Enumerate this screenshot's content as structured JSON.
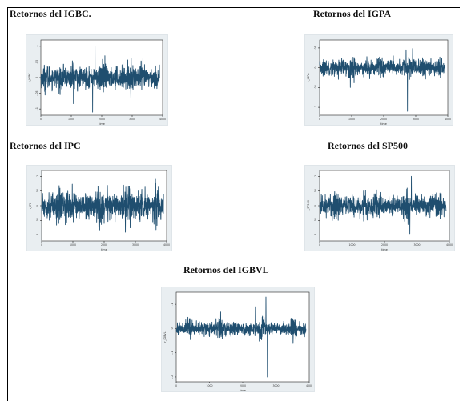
{
  "chart_data": [
    {
      "type": "line",
      "title": "Retornos del IGBC.",
      "ylabel": "r_IGBC",
      "xlabel": "time",
      "x_ticks": [
        "0",
        "1000",
        "2000",
        "3000",
        "4000"
      ],
      "y_ticks": [
        "-.1",
        "-.05",
        "0",
        ".05",
        ".1"
      ],
      "xlim": [
        0,
        4000
      ],
      "ylim": [
        -0.12,
        0.12
      ],
      "series_color": "#1f4e6f",
      "series": [
        {
          "x_range": [
            0,
            3900
          ],
          "base_amplitude": 0.015,
          "spikes": [
            {
              "x": 1700,
              "y": -0.11
            },
            {
              "x": 1780,
              "y": 0.1
            },
            {
              "x": 600,
              "y": -0.05
            },
            {
              "x": 2700,
              "y": 0.06
            }
          ]
        }
      ]
    },
    {
      "type": "line",
      "title": "Retornos del IGPA",
      "ylabel": "r_IGPA",
      "xlabel": "time",
      "x_ticks": [
        "0",
        "1000",
        "2000",
        "3000",
        "4000"
      ],
      "y_ticks": [
        "-.1",
        "-.05",
        "0",
        ".05"
      ],
      "xlim": [
        0,
        4000
      ],
      "ylim": [
        -0.12,
        0.07
      ],
      "series_color": "#1f4e6f",
      "series": [
        {
          "x_range": [
            0,
            3900
          ],
          "base_amplitude": 0.009,
          "spikes": [
            {
              "x": 2740,
              "y": -0.11
            },
            {
              "x": 2700,
              "y": 0.045
            },
            {
              "x": 2300,
              "y": 0.03
            }
          ]
        }
      ]
    },
    {
      "type": "line",
      "title": "Retornos del IPC",
      "ylabel": "r_IPC",
      "xlabel": "time",
      "x_ticks": [
        "0",
        "1000",
        "2000",
        "3000",
        "4000"
      ],
      "y_ticks": [
        "-.1",
        "-.05",
        "0",
        ".05",
        ".1"
      ],
      "xlim": [
        0,
        4000
      ],
      "ylim": [
        -0.12,
        0.12
      ],
      "series_color": "#1f4e6f",
      "series": [
        {
          "x_range": [
            0,
            3900
          ],
          "base_amplitude": 0.02,
          "spikes": [
            {
              "x": 2680,
              "y": -0.09
            },
            {
              "x": 2620,
              "y": 0.07
            },
            {
              "x": 2000,
              "y": -0.06
            }
          ]
        }
      ]
    },
    {
      "type": "line",
      "title": "Retornos del SP500",
      "ylabel": "r_SP500",
      "xlabel": "time",
      "x_ticks": [
        "0",
        "1000",
        "2000",
        "3000",
        "4000"
      ],
      "y_ticks": [
        "-.1",
        "-.05",
        "0",
        ".05",
        ".1"
      ],
      "xlim": [
        0,
        4000
      ],
      "ylim": [
        -0.12,
        0.12
      ],
      "series_color": "#1f4e6f",
      "series": [
        {
          "x_range": [
            0,
            3900
          ],
          "base_amplitude": 0.016,
          "spikes": [
            {
              "x": 2780,
              "y": -0.095
            },
            {
              "x": 2830,
              "y": 0.1
            },
            {
              "x": 3400,
              "y": -0.04
            }
          ]
        }
      ]
    },
    {
      "type": "line",
      "title": "Retornos del IGBVL",
      "ylabel": "r_IGBVL",
      "xlabel": "time",
      "x_ticks": [
        "0",
        "1000",
        "2000",
        "3000",
        "4000"
      ],
      "y_ticks": [
        "-.2",
        "-.1",
        "0",
        ".1"
      ],
      "xlim": [
        0,
        4000
      ],
      "ylim": [
        -0.22,
        0.15
      ],
      "series_color": "#1f4e6f",
      "series": [
        {
          "x_range": [
            0,
            3900
          ],
          "base_amplitude": 0.012,
          "spikes": [
            {
              "x": 2740,
              "y": -0.2
            },
            {
              "x": 2700,
              "y": 0.13
            },
            {
              "x": 2380,
              "y": 0.09
            },
            {
              "x": 3600,
              "y": -0.05
            }
          ]
        }
      ]
    }
  ]
}
